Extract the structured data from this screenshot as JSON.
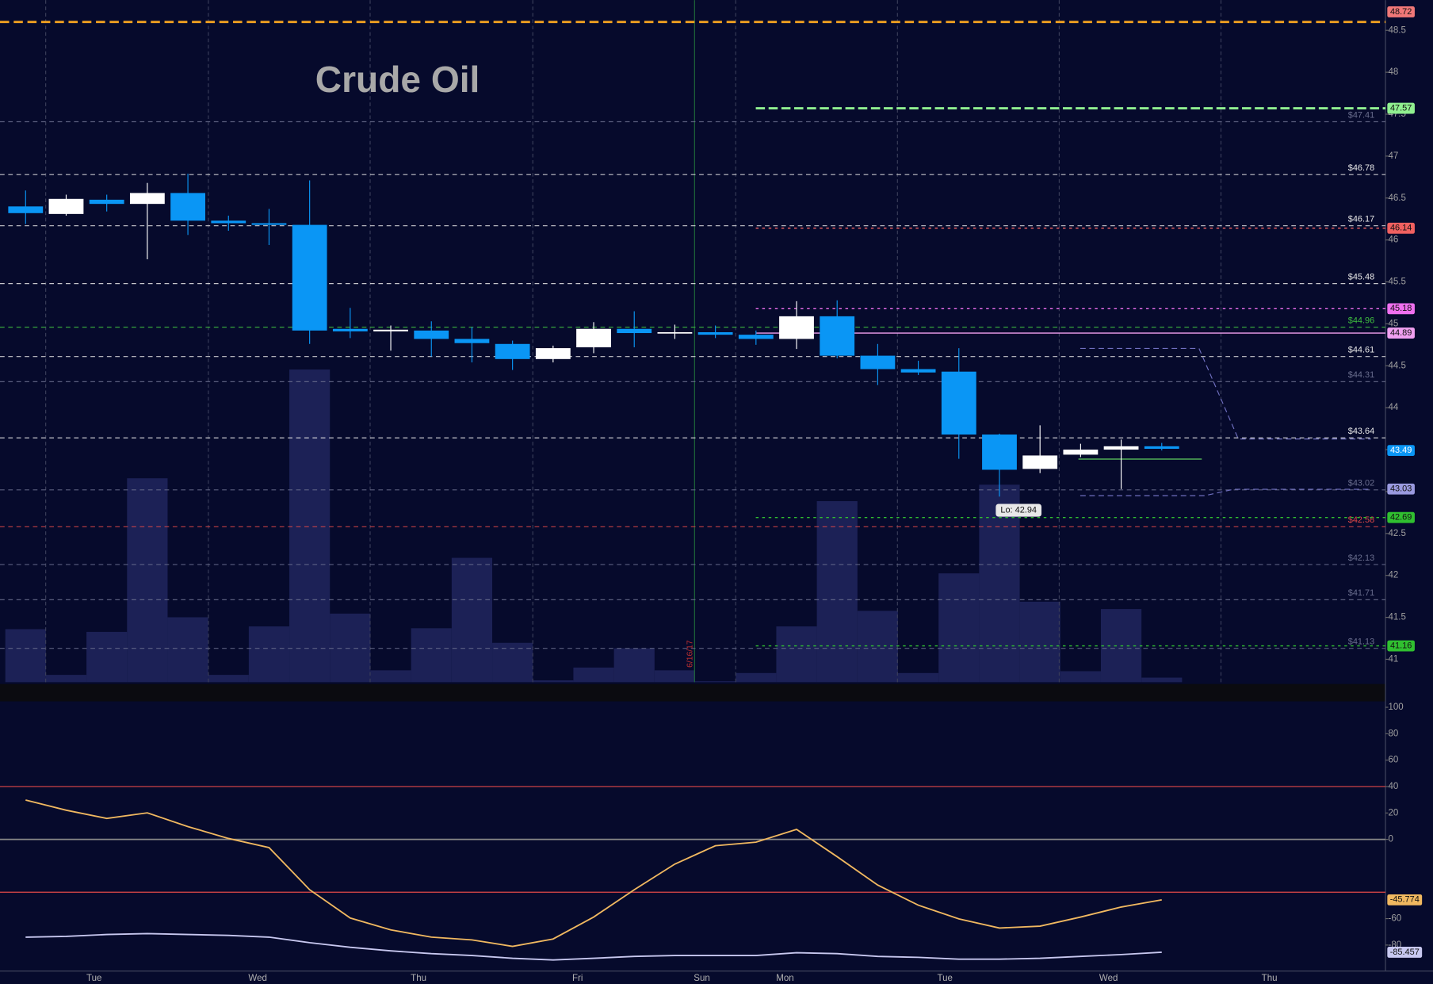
{
  "chart_data": {
    "type": "candlestick",
    "title": "Crude Oil",
    "ylim": [
      40.727,
      48.86
    ],
    "yticks": [
      41,
      41.5,
      42,
      42.5,
      43,
      43.5,
      44,
      44.5,
      45,
      45.5,
      46,
      46.5,
      47,
      47.5,
      48,
      48.5
    ],
    "up_color": "#ffffff",
    "down_color": "#0a96f5",
    "open": [
      46.4,
      46.31,
      46.48,
      46.43,
      46.56,
      46.23,
      46.2,
      46.18,
      44.94,
      44.91,
      44.92,
      44.82,
      44.76,
      44.58,
      44.72,
      44.94,
      44.89,
      44.9,
      44.87,
      44.82,
      45.09,
      44.62,
      44.46,
      44.43,
      43.68,
      43.27,
      43.44,
      43.5,
      43.54
    ],
    "high": [
      46.59,
      46.54,
      46.54,
      46.68,
      46.79,
      46.29,
      46.37,
      46.71,
      45.19,
      44.98,
      45.03,
      44.96,
      44.8,
      44.74,
      45.02,
      45.15,
      44.99,
      44.98,
      44.92,
      45.27,
      45.28,
      44.76,
      44.56,
      44.71,
      43.69,
      43.79,
      43.57,
      43.62,
      43.58
    ],
    "low": [
      46.19,
      46.29,
      46.34,
      45.77,
      46.06,
      46.11,
      45.94,
      44.76,
      44.83,
      44.68,
      44.61,
      44.54,
      44.45,
      44.54,
      44.65,
      44.72,
      44.82,
      44.83,
      44.75,
      44.7,
      44.59,
      44.27,
      44.39,
      43.39,
      42.94,
      43.22,
      43.41,
      43.03,
      43.49
    ],
    "close": [
      46.32,
      46.49,
      46.43,
      46.56,
      46.23,
      46.2,
      46.18,
      44.92,
      44.91,
      44.93,
      44.82,
      44.77,
      44.58,
      44.71,
      44.94,
      44.89,
      44.9,
      44.87,
      44.82,
      45.09,
      44.62,
      44.46,
      44.42,
      43.68,
      43.26,
      43.43,
      43.5,
      43.54,
      43.51
    ],
    "annotation": "Lo: 42.94",
    "volume": {
      "color": "#1c2156",
      "ylim": [
        0,
        746
      ],
      "values": [
        58,
        8,
        55,
        223,
        71,
        8,
        61,
        342,
        75,
        13,
        59,
        136,
        43,
        2,
        16,
        37,
        13,
        1,
        10,
        61,
        198,
        78,
        10,
        119,
        216,
        88,
        12,
        80,
        5
      ]
    },
    "resistance_line": {
      "value": 48.6,
      "color": "#f0a020"
    },
    "levels": [
      {
        "value": 47.41,
        "label": "$47.41",
        "color": "#6a6e8e"
      },
      {
        "value": 46.78,
        "label": "$46.78",
        "color": "#e8e8e8"
      },
      {
        "value": 46.17,
        "label": "$46.17",
        "color": "#e8e8e8"
      },
      {
        "value": 45.48,
        "label": "$45.48",
        "color": "#e8e8e8"
      },
      {
        "value": 44.96,
        "label": "$44.96",
        "color": "#3fbf3f"
      },
      {
        "value": 44.61,
        "label": "$44.61",
        "color": "#e8e8e8"
      },
      {
        "value": 44.31,
        "label": "$44.31",
        "color": "#6a6e8e"
      },
      {
        "value": 43.64,
        "label": "$43.64",
        "color": "#e8e8e8"
      },
      {
        "value": 43.02,
        "label": "$43.02",
        "color": "#6a6e8e"
      },
      {
        "value": 42.58,
        "label": "$42.58",
        "color": "#e04848"
      },
      {
        "value": 42.13,
        "label": "$42.13",
        "color": "#6a6e8e"
      },
      {
        "value": 41.71,
        "label": "$41.71",
        "color": "#6a6e8e"
      },
      {
        "value": 41.13,
        "label": "$41.13",
        "color": "#6a6e8e"
      }
    ],
    "price_tags": [
      {
        "value": 48.72,
        "color": "#f07878"
      },
      {
        "value": 47.57,
        "color": "#90f090",
        "line": "dashed"
      },
      {
        "value": 46.14,
        "color": "#f06060",
        "line": "dotted"
      },
      {
        "value": 45.18,
        "color": "#f070f0",
        "line": "dotted"
      },
      {
        "value": 44.89,
        "color": "#f0a0f0",
        "line": "solid"
      },
      {
        "value": 43.49,
        "color": "#0a96f5"
      },
      {
        "value": 43.03,
        "color": "#9a9ae0"
      },
      {
        "value": 42.69,
        "color": "#30c030",
        "line": "dotted"
      },
      {
        "value": 41.16,
        "color": "#30c030",
        "line": "dotted"
      }
    ],
    "x_labels": [
      "Tue",
      "Wed",
      "Thu",
      "Fri",
      "Sun",
      "Mon",
      "Tue",
      "Wed",
      "Thu"
    ],
    "date_marker": "6/16/17",
    "oscillator": {
      "ylim": [
        -99.7,
        103.8
      ],
      "yticks": [
        100,
        80,
        60,
        40,
        20,
        0,
        -60,
        -80
      ],
      "levels": [
        {
          "value": 40,
          "color": "#e04848"
        },
        {
          "value": 0,
          "color": "#888888"
        },
        {
          "value": -40,
          "color": "#e04848"
        }
      ],
      "series": [
        {
          "color": "#f0b860",
          "values": [
            29.8,
            22.1,
            15.9,
            20.1,
            9.7,
            0.7,
            -6.2,
            -38.1,
            -59.5,
            -68.5,
            -74.0,
            -76.1,
            -81.0,
            -75.4,
            -58.8,
            -38.1,
            -18.7,
            -4.8,
            -2.1,
            7.6,
            -13.1,
            -34.6,
            -49.8,
            -60.2,
            -67.1,
            -65.7,
            -58.8,
            -51.2,
            -45.774
          ]
        },
        {
          "color": "#c8c8f0",
          "values": [
            -74.0,
            -73.4,
            -72.0,
            -71.3,
            -72.0,
            -72.7,
            -74.0,
            -78.2,
            -81.7,
            -84.4,
            -86.5,
            -87.9,
            -90.0,
            -91.3,
            -90.0,
            -88.6,
            -87.9,
            -87.9,
            -87.9,
            -85.8,
            -86.5,
            -88.6,
            -89.3,
            -90.7,
            -90.7,
            -90.0,
            -88.6,
            -87.2,
            -85.457
          ]
        }
      ]
    }
  }
}
